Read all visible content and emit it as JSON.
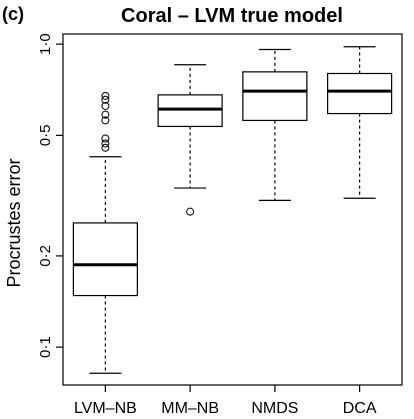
{
  "panel_label": "(c)",
  "chart_data": {
    "type": "boxplot",
    "title": "Coral – LVM true model",
    "xlabel": "",
    "ylabel": "Procrustes error",
    "y_scale": "log",
    "ylim": [
      0.075,
      1.08
    ],
    "y_ticks": [
      {
        "value": 0.1,
        "label": "0·1"
      },
      {
        "value": 0.2,
        "label": "0·2"
      },
      {
        "value": 0.5,
        "label": "0·5"
      },
      {
        "value": 1.0,
        "label": "1·0"
      }
    ],
    "categories": [
      "LVM–NB",
      "MM–NB",
      "NMDS",
      "DCA"
    ],
    "boxes": [
      {
        "name": "LVM–NB",
        "whisker_low": 0.082,
        "q1": 0.148,
        "median": 0.187,
        "q3": 0.257,
        "whisker_high": 0.425,
        "outliers": [
          0.455,
          0.47,
          0.488,
          0.56,
          0.585,
          0.625,
          0.655,
          0.675
        ]
      },
      {
        "name": "MM–NB",
        "whisker_low": 0.335,
        "q1": 0.535,
        "median": 0.61,
        "q3": 0.68,
        "whisker_high": 0.855,
        "outliers": [
          0.28
        ]
      },
      {
        "name": "NMDS",
        "whisker_low": 0.305,
        "q1": 0.56,
        "median": 0.7,
        "q3": 0.81,
        "whisker_high": 0.96,
        "outliers": []
      },
      {
        "name": "DCA",
        "whisker_low": 0.31,
        "q1": 0.59,
        "median": 0.7,
        "q3": 0.8,
        "whisker_high": 0.98,
        "outliers": []
      }
    ]
  }
}
